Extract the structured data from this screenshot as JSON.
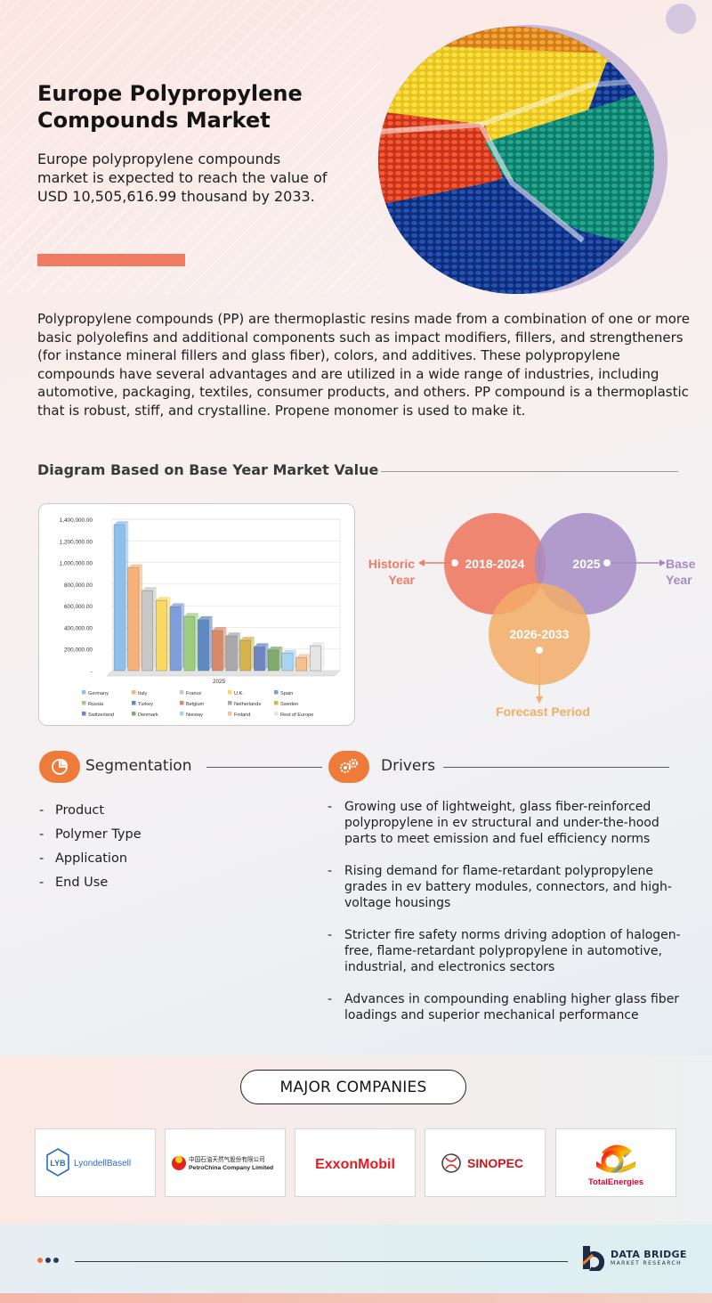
{
  "header": {
    "title": "Europe Polypropylene Compounds Market",
    "subtitle": "Europe polypropylene compounds market is expected to reach the value of USD 10,505,616.99 thousand by 2033."
  },
  "intro": "Polypropylene compounds (PP) are thermoplastic resins made from a combination of one or more basic polyolefins and additional components such as impact modifiers, fillers, and strengtheners (for instance mineral fillers and glass fiber), colors, and additives. These polypropylene compounds have several advantages and are utilized in a wide range of industries, including automotive, packaging, textiles, consumer products, and others. PP compound is a thermoplastic that is robust, stiff, and crystalline. Propene monomer is used to make it.",
  "diagram_heading": "Diagram Based on Base Year Market Value",
  "chart_data": {
    "type": "bar",
    "xlabel": "2025",
    "ylim": [
      0,
      1400000
    ],
    "yticks": [
      "1,400,000.00",
      "1,200,000.00",
      "1,000,000.00",
      "800,000.00",
      "600,000.00",
      "400,000.00",
      "200,000.00",
      "-"
    ],
    "series": [
      {
        "name": "Germany",
        "value": 1350000,
        "color": "#8fbfec"
      },
      {
        "name": "Italy",
        "value": 950000,
        "color": "#f7b27a"
      },
      {
        "name": "France",
        "value": 740000,
        "color": "#c8c8c8"
      },
      {
        "name": "U.K.",
        "value": 650000,
        "color": "#f9d863"
      },
      {
        "name": "Spain",
        "value": 590000,
        "color": "#7c9fdb"
      },
      {
        "name": "Russia",
        "value": 500000,
        "color": "#9fcd7f"
      },
      {
        "name": "Turkey",
        "value": 470000,
        "color": "#5f89c2"
      },
      {
        "name": "Belgium",
        "value": 370000,
        "color": "#d88b6a"
      },
      {
        "name": "Netherlands",
        "value": 320000,
        "color": "#a9a9a9"
      },
      {
        "name": "Sweden",
        "value": 280000,
        "color": "#d4b44c"
      },
      {
        "name": "Switzerland",
        "value": 220000,
        "color": "#6a86c4"
      },
      {
        "name": "Denmark",
        "value": 190000,
        "color": "#7eaa6b"
      },
      {
        "name": "Norway",
        "value": 160000,
        "color": "#a9d3f0"
      },
      {
        "name": "Finland",
        "value": 120000,
        "color": "#f6c08f"
      },
      {
        "name": "Rest of Europe",
        "value": 230000,
        "color": "#e4e4e4"
      }
    ]
  },
  "venn": {
    "historic_period": "2018-2024",
    "base_year": "2025",
    "forecast_period": "2026-2033",
    "historic_label_1": "Historic",
    "historic_label_2": "Year",
    "base_label_1": "Base",
    "base_label_2": "Year",
    "forecast_label": "Forecast Period",
    "colors": {
      "historic": "#ee7d66",
      "base": "#a58cc7",
      "forecast": "#f2ad67"
    }
  },
  "segmentation": {
    "title": "Segmentation",
    "items": [
      "Product",
      "Polymer Type",
      "Application",
      "End Use"
    ]
  },
  "drivers": {
    "title": "Drivers",
    "items": [
      "Growing use of lightweight, glass fiber-reinforced polypropylene in ev structural and under-the-hood parts to meet emission and fuel efficiency norms",
      "Rising demand for flame-retardant polypropylene grades in ev battery modules, connectors, and high-voltage housings",
      "Stricter fire safety norms driving adoption of halogen-free, flame-retardant polypropylene in automotive, industrial, and electronics sectors",
      "Advances in compounding enabling higher glass fiber loadings and superior mechanical performance"
    ]
  },
  "companies": {
    "title": "MAJOR COMPANIES",
    "logos": [
      {
        "name": "LyondellBasell",
        "mark": "LYB"
      },
      {
        "name": "PetroChina Company Limited",
        "mark": "中国石油天然气股份有限公司"
      },
      {
        "name": "ExxonMobil"
      },
      {
        "name": "SINOPEC",
        "mark": "中國石化 SINOPEC"
      },
      {
        "name": "TotalEnergies"
      }
    ]
  },
  "footer": {
    "brand_line1": "DATA BRIDGE",
    "brand_line2": "MARKET RESEARCH"
  }
}
